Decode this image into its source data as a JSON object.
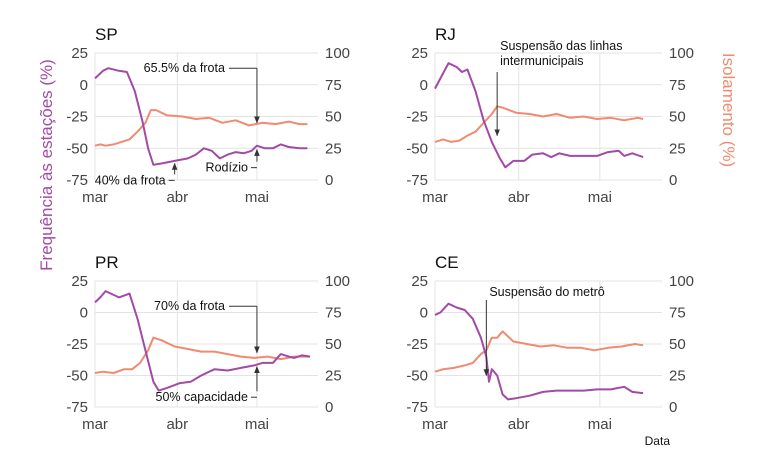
{
  "chart_data": {
    "type": "line",
    "y_label_left": "Frequência às estações (%)",
    "y_label_right": "Isolamento (%)",
    "x_label": "Data",
    "x_ticks": [
      {
        "date": "2020-03-01",
        "label": "mar"
      },
      {
        "date": "2020-04-01",
        "label": "abr"
      },
      {
        "date": "2020-05-01",
        "label": "mai"
      }
    ],
    "y_left_ticks": [
      -75,
      -50,
      -25,
      0,
      25
    ],
    "y_right_ticks": [
      0,
      25,
      50,
      75,
      100
    ],
    "ylim_left": [
      -75,
      25
    ],
    "ylim_right": [
      0,
      100
    ],
    "colors": {
      "frequency": "#a24aa6",
      "isolation": "#f08a70",
      "grid": "#e3e3e3",
      "annotation": "#333333"
    },
    "panels": [
      {
        "title": "SP",
        "frequency": [
          [
            "2020-03-01",
            5
          ],
          [
            "2020-03-04",
            11
          ],
          [
            "2020-03-06",
            13
          ],
          [
            "2020-03-10",
            11
          ],
          [
            "2020-03-13",
            10
          ],
          [
            "2020-03-16",
            -5
          ],
          [
            "2020-03-19",
            -30
          ],
          [
            "2020-03-21",
            -50
          ],
          [
            "2020-03-23",
            -63
          ],
          [
            "2020-03-26",
            -62
          ],
          [
            "2020-03-31",
            -60
          ],
          [
            "2020-04-05",
            -58
          ],
          [
            "2020-04-08",
            -55
          ],
          [
            "2020-04-11",
            -50
          ],
          [
            "2020-04-14",
            -52
          ],
          [
            "2020-04-17",
            -58
          ],
          [
            "2020-04-20",
            -55
          ],
          [
            "2020-04-23",
            -53
          ],
          [
            "2020-04-26",
            -54
          ],
          [
            "2020-04-29",
            -52
          ],
          [
            "2020-05-01",
            -48
          ],
          [
            "2020-05-04",
            -50
          ],
          [
            "2020-05-07",
            -50
          ],
          [
            "2020-05-10",
            -47
          ],
          [
            "2020-05-13",
            -49
          ],
          [
            "2020-05-17",
            -50
          ],
          [
            "2020-05-20",
            -50
          ]
        ],
        "isolation": [
          [
            "2020-03-01",
            27
          ],
          [
            "2020-03-03",
            28
          ],
          [
            "2020-03-05",
            27
          ],
          [
            "2020-03-08",
            28
          ],
          [
            "2020-03-11",
            30
          ],
          [
            "2020-03-14",
            32
          ],
          [
            "2020-03-17",
            38
          ],
          [
            "2020-03-20",
            45
          ],
          [
            "2020-03-22",
            55
          ],
          [
            "2020-03-24",
            55
          ],
          [
            "2020-03-28",
            51
          ],
          [
            "2020-04-03",
            50
          ],
          [
            "2020-04-08",
            48
          ],
          [
            "2020-04-13",
            49
          ],
          [
            "2020-04-18",
            45
          ],
          [
            "2020-04-23",
            47
          ],
          [
            "2020-04-28",
            43
          ],
          [
            "2020-05-03",
            45
          ],
          [
            "2020-05-08",
            44
          ],
          [
            "2020-05-13",
            46
          ],
          [
            "2020-05-17",
            44
          ],
          [
            "2020-05-20",
            44
          ]
        ],
        "annotations": [
          {
            "text": "65.5% da frota",
            "date": "2020-05-01",
            "from": 13,
            "to": -30
          },
          {
            "text": "40% da frota",
            "date": "2020-03-31",
            "from": -80,
            "to": -62
          },
          {
            "text": "Rodízio",
            "date": "2020-05-01",
            "from": -70,
            "to": -51
          }
        ]
      },
      {
        "title": "RJ",
        "frequency": [
          [
            "2020-03-01",
            -3
          ],
          [
            "2020-03-03",
            5
          ],
          [
            "2020-03-06",
            17
          ],
          [
            "2020-03-09",
            14
          ],
          [
            "2020-03-11",
            10
          ],
          [
            "2020-03-13",
            12
          ],
          [
            "2020-03-16",
            -5
          ],
          [
            "2020-03-19",
            -28
          ],
          [
            "2020-03-22",
            -45
          ],
          [
            "2020-03-25",
            -58
          ],
          [
            "2020-03-27",
            -65
          ],
          [
            "2020-03-30",
            -60
          ],
          [
            "2020-04-03",
            -60
          ],
          [
            "2020-04-06",
            -55
          ],
          [
            "2020-04-10",
            -54
          ],
          [
            "2020-04-13",
            -57
          ],
          [
            "2020-04-16",
            -54
          ],
          [
            "2020-04-20",
            -56
          ],
          [
            "2020-04-25",
            -56
          ],
          [
            "2020-04-30",
            -56
          ],
          [
            "2020-05-04",
            -53
          ],
          [
            "2020-05-08",
            -52
          ],
          [
            "2020-05-10",
            -56
          ],
          [
            "2020-05-13",
            -54
          ],
          [
            "2020-05-17",
            -57
          ]
        ],
        "isolation": [
          [
            "2020-03-01",
            30
          ],
          [
            "2020-03-04",
            32
          ],
          [
            "2020-03-07",
            30
          ],
          [
            "2020-03-10",
            31
          ],
          [
            "2020-03-13",
            35
          ],
          [
            "2020-03-16",
            38
          ],
          [
            "2020-03-19",
            45
          ],
          [
            "2020-03-22",
            52
          ],
          [
            "2020-03-24",
            58
          ],
          [
            "2020-03-26",
            57
          ],
          [
            "2020-03-31",
            53
          ],
          [
            "2020-04-05",
            52
          ],
          [
            "2020-04-10",
            50
          ],
          [
            "2020-04-15",
            52
          ],
          [
            "2020-04-20",
            49
          ],
          [
            "2020-04-25",
            50
          ],
          [
            "2020-04-30",
            48
          ],
          [
            "2020-05-05",
            49
          ],
          [
            "2020-05-10",
            47
          ],
          [
            "2020-05-15",
            49
          ],
          [
            "2020-05-17",
            48
          ]
        ],
        "annotations": [
          {
            "text": "Suspensão das linhas",
            "text2": "intermunicipais",
            "date": "2020-03-24",
            "from": 10,
            "to": -40
          }
        ]
      },
      {
        "title": "PR",
        "frequency": [
          [
            "2020-03-01",
            8
          ],
          [
            "2020-03-03",
            12
          ],
          [
            "2020-03-05",
            17
          ],
          [
            "2020-03-08",
            14
          ],
          [
            "2020-03-10",
            12
          ],
          [
            "2020-03-14",
            15
          ],
          [
            "2020-03-17",
            -5
          ],
          [
            "2020-03-20",
            -30
          ],
          [
            "2020-03-23",
            -55
          ],
          [
            "2020-03-25",
            -62
          ],
          [
            "2020-03-28",
            -60
          ],
          [
            "2020-04-02",
            -56
          ],
          [
            "2020-04-06",
            -55
          ],
          [
            "2020-04-10",
            -50
          ],
          [
            "2020-04-15",
            -45
          ],
          [
            "2020-04-20",
            -46
          ],
          [
            "2020-04-25",
            -44
          ],
          [
            "2020-04-30",
            -42
          ],
          [
            "2020-05-03",
            -40
          ],
          [
            "2020-05-07",
            -40
          ],
          [
            "2020-05-10",
            -33
          ],
          [
            "2020-05-13",
            -35
          ],
          [
            "2020-05-15",
            -36
          ],
          [
            "2020-05-18",
            -34
          ],
          [
            "2020-05-21",
            -35
          ]
        ],
        "isolation": [
          [
            "2020-03-01",
            27
          ],
          [
            "2020-03-04",
            28
          ],
          [
            "2020-03-08",
            27
          ],
          [
            "2020-03-12",
            30
          ],
          [
            "2020-03-15",
            30
          ],
          [
            "2020-03-18",
            35
          ],
          [
            "2020-03-21",
            45
          ],
          [
            "2020-03-23",
            55
          ],
          [
            "2020-03-26",
            53
          ],
          [
            "2020-03-31",
            48
          ],
          [
            "2020-04-05",
            46
          ],
          [
            "2020-04-10",
            44
          ],
          [
            "2020-04-15",
            44
          ],
          [
            "2020-04-20",
            42
          ],
          [
            "2020-04-25",
            40
          ],
          [
            "2020-04-30",
            39
          ],
          [
            "2020-05-05",
            40
          ],
          [
            "2020-05-10",
            38
          ],
          [
            "2020-05-15",
            40
          ],
          [
            "2020-05-21",
            40
          ]
        ],
        "annotations": [
          {
            "text": "70% da frota",
            "date": "2020-05-01",
            "from": 5,
            "to": -32
          },
          {
            "text": "50% capacidade",
            "date": "2020-05-01",
            "from": -72,
            "to": -43
          }
        ]
      },
      {
        "title": "CE",
        "frequency": [
          [
            "2020-03-01",
            -2
          ],
          [
            "2020-03-03",
            0
          ],
          [
            "2020-03-06",
            7
          ],
          [
            "2020-03-09",
            4
          ],
          [
            "2020-03-12",
            2
          ],
          [
            "2020-03-15",
            -5
          ],
          [
            "2020-03-18",
            -20
          ],
          [
            "2020-03-20",
            -35
          ],
          [
            "2020-03-21",
            -55
          ],
          [
            "2020-03-22",
            -45
          ],
          [
            "2020-03-24",
            -50
          ],
          [
            "2020-03-26",
            -65
          ],
          [
            "2020-03-28",
            -69
          ],
          [
            "2020-03-31",
            -68
          ],
          [
            "2020-04-05",
            -66
          ],
          [
            "2020-04-10",
            -63
          ],
          [
            "2020-04-15",
            -62
          ],
          [
            "2020-04-20",
            -62
          ],
          [
            "2020-04-25",
            -62
          ],
          [
            "2020-04-30",
            -61
          ],
          [
            "2020-05-05",
            -61
          ],
          [
            "2020-05-10",
            -59
          ],
          [
            "2020-05-13",
            -63
          ],
          [
            "2020-05-17",
            -64
          ]
        ],
        "isolation": [
          [
            "2020-03-01",
            28
          ],
          [
            "2020-03-04",
            30
          ],
          [
            "2020-03-08",
            31
          ],
          [
            "2020-03-12",
            33
          ],
          [
            "2020-03-15",
            35
          ],
          [
            "2020-03-18",
            42
          ],
          [
            "2020-03-20",
            45
          ],
          [
            "2020-03-22",
            55
          ],
          [
            "2020-03-24",
            55
          ],
          [
            "2020-03-26",
            60
          ],
          [
            "2020-03-30",
            52
          ],
          [
            "2020-04-04",
            50
          ],
          [
            "2020-04-09",
            48
          ],
          [
            "2020-04-14",
            49
          ],
          [
            "2020-04-19",
            47
          ],
          [
            "2020-04-24",
            47
          ],
          [
            "2020-04-29",
            45
          ],
          [
            "2020-05-04",
            47
          ],
          [
            "2020-05-09",
            48
          ],
          [
            "2020-05-14",
            50
          ],
          [
            "2020-05-17",
            49
          ]
        ],
        "annotations": [
          {
            "text": "Suspensão do metrô",
            "date": "2020-03-20",
            "from": 10,
            "to": -50
          }
        ]
      }
    ]
  }
}
